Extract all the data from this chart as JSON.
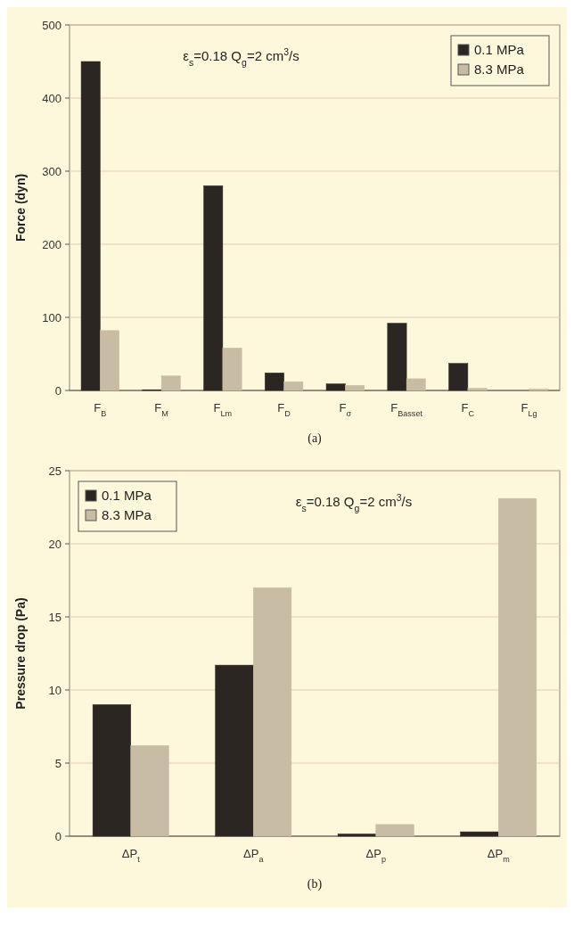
{
  "chart_data": [
    {
      "type": "bar",
      "ylabel": "Force (dyn)",
      "categories": [
        "F$_{B}$",
        "F$_{M}$",
        "F$_{Lm}$",
        "F$_{D}$",
        "F$_{σ}$",
        "F$_{Basset}$",
        "F$_{C}$",
        "F$_{Lg}$"
      ],
      "series": [
        {
          "name": "0.1 MPa",
          "color": "#2b2622",
          "values": [
            450,
            1,
            280,
            24,
            9,
            92,
            37,
            0
          ]
        },
        {
          "name": "8.3 MPa",
          "color": "#c8bda4",
          "values": [
            82,
            20,
            58,
            12,
            7,
            16,
            3,
            2
          ]
        }
      ],
      "ylim": [
        0,
        500
      ],
      "yticks": [
        0,
        100,
        200,
        300,
        400,
        500
      ],
      "grid": "y",
      "legend": "top right",
      "annotations": [
        "ε$_{s}$=0.18    Q$_{g}$=2 cm$^{3}$/s",
        "(a)"
      ]
    },
    {
      "type": "bar",
      "ylabel": "Pressure drop (Pa)",
      "categories": [
        "ΔP$_{t}$",
        "ΔP$_{a}$",
        "ΔP$_{p}$",
        "ΔP$_{m}$"
      ],
      "series": [
        {
          "name": "0.1 MPa",
          "color": "#2b2622",
          "values": [
            9,
            11.7,
            0.15,
            0.3
          ]
        },
        {
          "name": "8.3 MPa",
          "color": "#c8bda4",
          "values": [
            6.2,
            17,
            0.8,
            23.1
          ]
        }
      ],
      "ylim": [
        0,
        25
      ],
      "yticks": [
        0,
        5,
        10,
        15,
        20,
        25
      ],
      "grid": "y",
      "legend": "top left",
      "annotations": [
        "ε$_{s}$=0.18    Q$_{g}$=2 cm$^{3}$/s",
        "(b)"
      ]
    }
  ]
}
